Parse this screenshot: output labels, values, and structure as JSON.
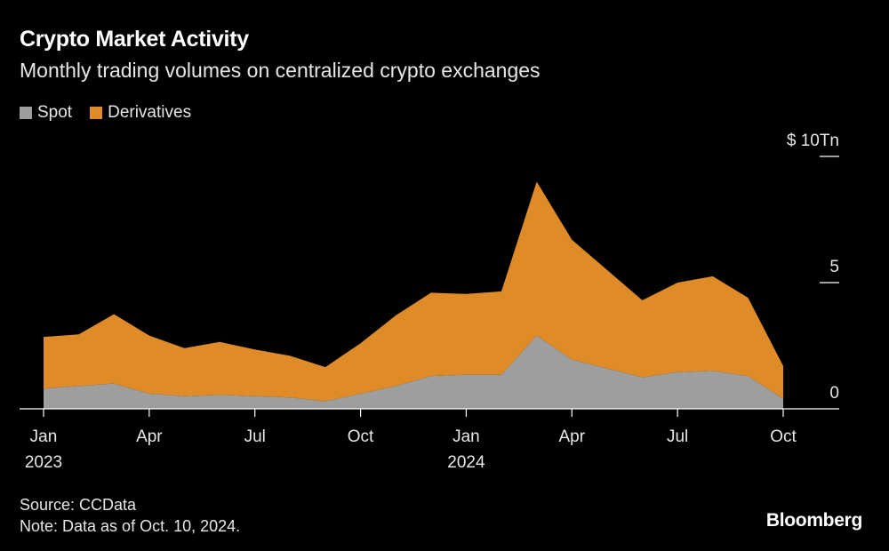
{
  "header": {
    "title": "Crypto Market Activity",
    "subtitle": "Monthly trading volumes on centralized crypto exchanges"
  },
  "legend": [
    {
      "label": "Spot",
      "color": "#9e9e9e"
    },
    {
      "label": "Derivatives",
      "color": "#df8b27"
    }
  ],
  "footer": {
    "source": "Source: CCData",
    "note": "Note: Data as of Oct. 10, 2024.",
    "logo": "Bloomberg"
  },
  "chart_data": {
    "type": "area",
    "stacked": true,
    "x": [
      "2023-01",
      "2023-02",
      "2023-03",
      "2023-04",
      "2023-05",
      "2023-06",
      "2023-07",
      "2023-08",
      "2023-09",
      "2023-10",
      "2023-11",
      "2023-12",
      "2024-01",
      "2024-02",
      "2024-03",
      "2024-04",
      "2024-05",
      "2024-06",
      "2024-07",
      "2024-08",
      "2024-09",
      "2024-10"
    ],
    "series": [
      {
        "name": "Spot",
        "color": "#9e9e9e",
        "values": [
          0.8,
          0.9,
          1.0,
          0.6,
          0.5,
          0.55,
          0.5,
          0.45,
          0.3,
          0.6,
          0.9,
          1.3,
          1.35,
          1.35,
          2.9,
          1.95,
          1.6,
          1.25,
          1.45,
          1.5,
          1.3,
          0.4
        ]
      },
      {
        "name": "Derivatives",
        "color": "#df8b27",
        "values": [
          2.05,
          2.05,
          2.75,
          2.3,
          1.9,
          2.1,
          1.85,
          1.65,
          1.35,
          2.0,
          2.8,
          3.3,
          3.2,
          3.3,
          6.1,
          4.75,
          3.9,
          3.05,
          3.55,
          3.75,
          3.1,
          1.3
        ]
      }
    ],
    "ylim": [
      0,
      10
    ],
    "yticks": [
      {
        "value": 10,
        "label": "$ 10Tn"
      },
      {
        "value": 5,
        "label": "5"
      },
      {
        "value": 0,
        "label": "0"
      }
    ],
    "xticks": [
      {
        "index": 0,
        "label": "Jan",
        "sublabel": "2023"
      },
      {
        "index": 3,
        "label": "Apr",
        "sublabel": ""
      },
      {
        "index": 6,
        "label": "Jul",
        "sublabel": ""
      },
      {
        "index": 9,
        "label": "Oct",
        "sublabel": ""
      },
      {
        "index": 12,
        "label": "Jan",
        "sublabel": "2024"
      },
      {
        "index": 15,
        "label": "Apr",
        "sublabel": ""
      },
      {
        "index": 18,
        "label": "Jul",
        "sublabel": ""
      },
      {
        "index": 21,
        "label": "Oct",
        "sublabel": ""
      }
    ],
    "grid": false,
    "legend_position": "top-left"
  }
}
